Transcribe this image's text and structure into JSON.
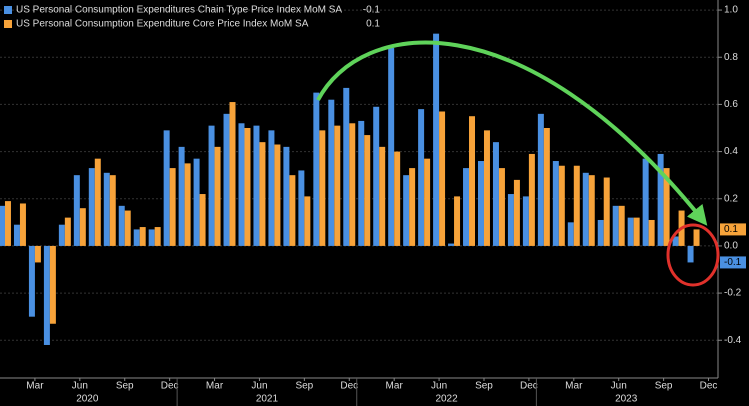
{
  "chart_data": {
    "type": "bar",
    "categories": [
      null,
      null,
      "Mar",
      null,
      null,
      "Jun",
      null,
      null,
      "Sep",
      null,
      null,
      "Dec",
      null,
      null,
      "Mar",
      null,
      null,
      "Jun",
      null,
      null,
      "Sep",
      null,
      null,
      "Dec",
      null,
      null,
      "Mar",
      null,
      null,
      "Jun",
      null,
      null,
      "Sep",
      null,
      null,
      "Dec",
      null,
      null,
      "Mar",
      null,
      null,
      "Jun",
      null,
      null,
      "Sep",
      null,
      null,
      "Dec"
    ],
    "year_labels": [
      "2020",
      "2021",
      "2022",
      "2023"
    ],
    "series": [
      {
        "name": "US Personal Consumption Expenditures Chain Type Price Index MoM SA",
        "color": "#4a90e2",
        "last_value": -0.1,
        "values": [
          0.17,
          0.09,
          -0.3,
          -0.42,
          0.09,
          0.3,
          0.33,
          0.31,
          0.17,
          0.07,
          0.07,
          0.49,
          0.42,
          0.37,
          0.51,
          0.56,
          0.52,
          0.51,
          0.49,
          0.42,
          0.32,
          0.65,
          0.62,
          0.67,
          0.53,
          0.59,
          0.84,
          0.3,
          0.58,
          0.9,
          0.01,
          0.33,
          0.36,
          0.44,
          0.22,
          0.21,
          0.56,
          0.36,
          0.1,
          0.31,
          0.11,
          0.17,
          0.12,
          0.37,
          0.39,
          0.04,
          -0.07,
          null
        ]
      },
      {
        "name": "US Personal Consumption Expenditure Core Price Index MoM SA",
        "color": "#f7a33a",
        "last_value": 0.1,
        "values": [
          0.19,
          0.18,
          -0.07,
          -0.33,
          0.12,
          0.16,
          0.37,
          0.3,
          0.15,
          0.08,
          0.08,
          0.33,
          0.35,
          0.22,
          0.42,
          0.61,
          0.5,
          0.44,
          0.43,
          0.3,
          0.21,
          0.49,
          0.51,
          0.52,
          0.47,
          0.42,
          0.4,
          0.33,
          0.37,
          0.57,
          0.21,
          0.55,
          0.49,
          0.33,
          0.28,
          0.39,
          0.5,
          0.34,
          0.34,
          0.3,
          0.29,
          0.17,
          0.12,
          0.11,
          0.33,
          0.15,
          0.07,
          null
        ]
      }
    ],
    "ylim": [
      -0.56,
      1.03
    ],
    "yticks": [
      {
        "value": 1.0,
        "label": "1.0"
      },
      0.8,
      0.6,
      0.4,
      0.2,
      {
        "value": 0,
        "label": "0.0"
      },
      -0.2,
      -0.4
    ],
    "grid": true
  }
}
